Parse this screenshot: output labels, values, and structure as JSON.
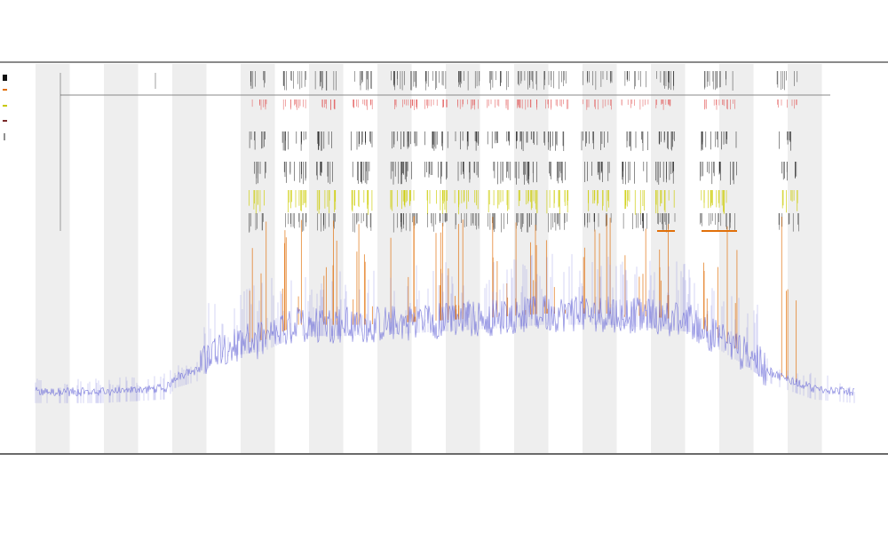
{
  "chart_data": {
    "type": "line",
    "title": "",
    "subtitle_lines": [
      "",
      ""
    ],
    "xlabel": "",
    "ylabel": "",
    "legend": {
      "placement": "left",
      "entries": [
        {
          "name": "",
          "color": "#111111",
          "marker": "square"
        },
        {
          "name": "",
          "color": "#e1700a",
          "marker": "line"
        },
        {
          "name": "",
          "color": "#c8c800",
          "marker": "line"
        },
        {
          "name": "",
          "color": "#7a2a2a",
          "marker": "bar"
        }
      ]
    },
    "track_labels": [
      "",
      ""
    ],
    "grid": false,
    "background_bands": "alternating-gray",
    "colors": {
      "coverage": "#6b6bd8",
      "spikes": "#e1700a",
      "reference_line": "#888888",
      "mismatch_track": "#e04848",
      "marks": "#111111",
      "highlight": "#cccc00",
      "band": "#eeeeee"
    },
    "series": [
      {
        "role": "coverage-profile",
        "x_range": [
          0,
          100
        ],
        "y_range": [
          0,
          100
        ],
        "approx_levels": [
          {
            "x": 0,
            "y": 14
          },
          {
            "x": 8,
            "y": 14
          },
          {
            "x": 16,
            "y": 15
          },
          {
            "x": 17,
            "y": 18
          },
          {
            "x": 20,
            "y": 20
          },
          {
            "x": 22,
            "y": 26
          },
          {
            "x": 28,
            "y": 28
          },
          {
            "x": 32,
            "y": 32
          },
          {
            "x": 40,
            "y": 32
          },
          {
            "x": 48,
            "y": 33
          },
          {
            "x": 56,
            "y": 34
          },
          {
            "x": 62,
            "y": 35
          },
          {
            "x": 70,
            "y": 35
          },
          {
            "x": 76,
            "y": 34
          },
          {
            "x": 80,
            "y": 33
          },
          {
            "x": 86,
            "y": 25
          },
          {
            "x": 90,
            "y": 19
          },
          {
            "x": 95,
            "y": 15
          },
          {
            "x": 100,
            "y": 14
          }
        ]
      }
    ],
    "x_tick_count": 180,
    "x_tick_label": "",
    "tick_label_unreadable": true
  }
}
